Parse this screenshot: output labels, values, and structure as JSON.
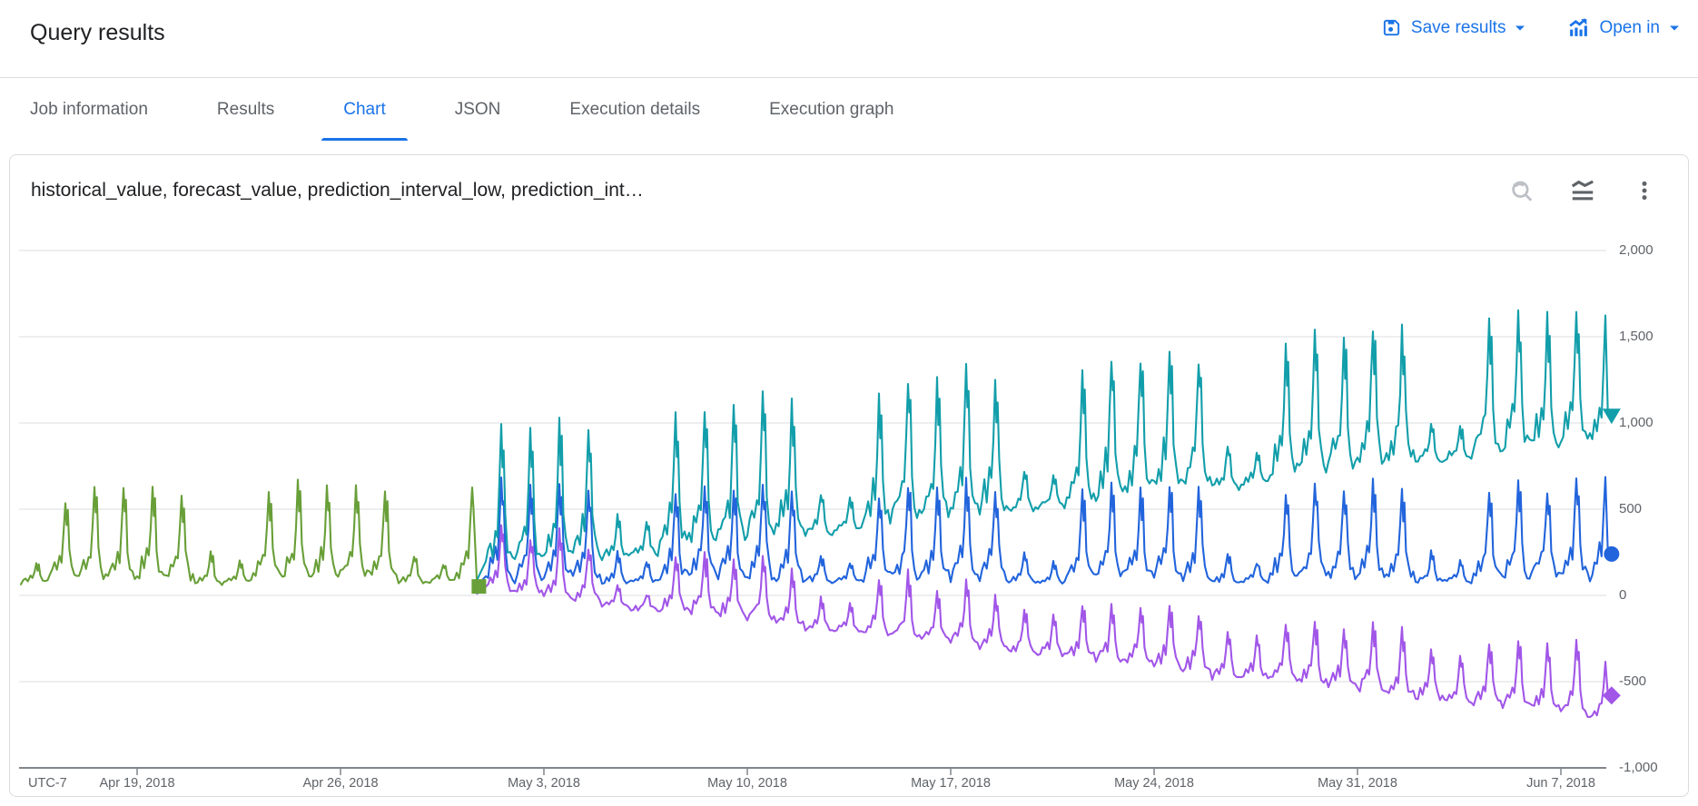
{
  "header": {
    "title": "Query results",
    "save_results_label": "Save results",
    "open_in_label": "Open in"
  },
  "tabs": [
    {
      "label": "Job information",
      "active": false
    },
    {
      "label": "Results",
      "active": false
    },
    {
      "label": "Chart",
      "active": true
    },
    {
      "label": "JSON",
      "active": false
    },
    {
      "label": "Execution details",
      "active": false
    },
    {
      "label": "Execution graph",
      "active": false
    }
  ],
  "chart_card": {
    "title": "historical_value, forecast_value, prediction_interval_low, prediction_int…",
    "icons": [
      "zoom-reset",
      "chart-settings",
      "more-options"
    ]
  },
  "colors": {
    "accent_blue": "#1a73e8",
    "tab_inactive": "#5f6368",
    "card_border": "#dadce0",
    "gridline": "#e2e4e7",
    "axis_line": "#80868b",
    "axis_text": "#5f6368",
    "historical_green": "#689f38",
    "forecast_blue": "#2264dc",
    "interval_high_teal": "#129eaa",
    "interval_low_purple": "#a156e8"
  },
  "chart_data": {
    "type": "line",
    "title": "historical_value, forecast_value, prediction_interval_low, prediction_interval_high",
    "x_axis": {
      "timezone_label": "UTC-7",
      "start_date": "Apr 15, 2018",
      "unit": "day",
      "tick_labels": [
        "Apr 19, 2018",
        "Apr 26, 2018",
        "May 3, 2018",
        "May 10, 2018",
        "May 17, 2018",
        "May 24, 2018",
        "May 31, 2018",
        "Jun 7, 2018"
      ],
      "tick_days": [
        4,
        11,
        18,
        25,
        32,
        39,
        46,
        53
      ]
    },
    "y_axis": {
      "min": -1000,
      "max": 2000,
      "grid": true,
      "position": "right",
      "tick_values": [
        2000,
        1500,
        1000,
        500,
        0,
        -500,
        -1000
      ],
      "tick_labels": [
        "2,000",
        "1,500",
        "1,000",
        "500",
        "0",
        "-500",
        "-1,000"
      ]
    },
    "intraday_profile": [
      [
        0,
        0.06
      ],
      [
        0.08,
        0.1
      ],
      [
        0.16,
        0.22
      ],
      [
        0.24,
        0.15
      ],
      [
        0.33,
        0.33
      ],
      [
        0.4,
        0.26
      ],
      [
        0.47,
        0.6
      ],
      [
        0.53,
        1.0
      ],
      [
        0.575,
        0.72
      ],
      [
        0.615,
        0.86
      ],
      [
        0.67,
        0.36
      ],
      [
        0.75,
        0.16
      ],
      [
        0.84,
        0.09
      ],
      [
        0.92,
        0.07
      ]
    ],
    "series": [
      {
        "name": "historical_value",
        "color": "#689f38",
        "marker": "square",
        "start_day": 0,
        "cut_last_day": 0.6,
        "end": [
          15.7,
          52
        ],
        "days_trough_peak": [
          [
            72,
            185
          ],
          [
            78,
            565
          ],
          [
            70,
            640
          ],
          [
            82,
            605
          ],
          [
            74,
            650
          ],
          [
            69,
            585
          ],
          [
            64,
            240
          ],
          [
            71,
            195
          ],
          [
            80,
            590
          ],
          [
            74,
            655
          ],
          [
            69,
            615
          ],
          [
            81,
            660
          ],
          [
            76,
            600
          ],
          [
            65,
            230
          ],
          [
            70,
            188
          ],
          [
            76,
            635
          ]
        ]
      },
      {
        "name": "prediction_interval_low",
        "color": "#a156e8",
        "marker": "diamond",
        "start_day": 16,
        "lead_in": [
          15.7,
          10
        ],
        "cut_last_day": 0.56,
        "end": [
          54.62,
          -580
        ],
        "days_trough_peak": [
          [
            15,
            388
          ],
          [
            -10,
            323
          ],
          [
            -19,
            368
          ],
          [
            -46,
            292
          ],
          [
            -75,
            57
          ],
          [
            -89,
            11
          ],
          [
            -100,
            232
          ],
          [
            -126,
            240
          ],
          [
            -137,
            205
          ],
          [
            -162,
            231
          ],
          [
            -185,
            140
          ],
          [
            -211,
            -14
          ],
          [
            -224,
            -41
          ],
          [
            -236,
            95
          ],
          [
            -261,
            132
          ],
          [
            -273,
            19
          ],
          [
            -297,
            81
          ],
          [
            -321,
            -4
          ],
          [
            -346,
            -88
          ],
          [
            -361,
            -108
          ],
          [
            -371,
            -65
          ],
          [
            -397,
            -56
          ],
          [
            -408,
            -81
          ],
          [
            -433,
            -67
          ],
          [
            -456,
            -102
          ],
          [
            -482,
            -213
          ],
          [
            -496,
            -240
          ],
          [
            -507,
            -168
          ],
          [
            -532,
            -155
          ],
          [
            -544,
            -184
          ],
          [
            -568,
            -167
          ],
          [
            -592,
            -202
          ],
          [
            -617,
            -326
          ],
          [
            -632,
            -357
          ],
          [
            -642,
            -271
          ],
          [
            -668,
            -255
          ],
          [
            -679,
            -287
          ],
          [
            -704,
            -267
          ],
          [
            -727,
            -385
          ]
        ]
      },
      {
        "name": "forecast_value",
        "color": "#2264dc",
        "marker": "circle",
        "start_day": 16,
        "lead_in": [
          15.7,
          55
        ],
        "cut_last_day": 0.56,
        "end": [
          54.62,
          240
        ],
        "days_trough_peak": [
          [
            75,
            650
          ],
          [
            70,
            615
          ],
          [
            80,
            660
          ],
          [
            73,
            600
          ],
          [
            63,
            245
          ],
          [
            69,
            195
          ],
          [
            77,
            585
          ],
          [
            71,
            648
          ],
          [
            79,
            612
          ],
          [
            74,
            658
          ],
          [
            70,
            598
          ],
          [
            64,
            238
          ],
          [
            70,
            192
          ],
          [
            78,
            588
          ],
          [
            72,
            652
          ],
          [
            80,
            610
          ],
          [
            75,
            662
          ],
          [
            71,
            602
          ],
          [
            65,
            242
          ],
          [
            70,
            190
          ],
          [
            79,
            592
          ],
          [
            73,
            655
          ],
          [
            81,
            615
          ],
          [
            76,
            665
          ],
          [
            72,
            605
          ],
          [
            66,
            240
          ],
          [
            71,
            196
          ],
          [
            80,
            595
          ],
          [
            74,
            660
          ],
          [
            82,
            618
          ],
          [
            77,
            668
          ],
          [
            73,
            608
          ],
          [
            67,
            245
          ],
          [
            72,
            198
          ],
          [
            81,
            598
          ],
          [
            75,
            662
          ],
          [
            83,
            622
          ],
          [
            78,
            670
          ],
          [
            74,
            700
          ]
        ]
      },
      {
        "name": "prediction_interval_high",
        "color": "#129eaa",
        "marker": "triangle-down",
        "start_day": 16,
        "lead_in": [
          15.7,
          90
        ],
        "cut_last_day": 0.56,
        "end": [
          54.62,
          1041
        ],
        "days_trough_peak": [
          [
            135,
            970
          ],
          [
            150,
            955
          ],
          [
            179,
            1019
          ],
          [
            192,
            979
          ],
          [
            201,
            463
          ],
          [
            227,
            433
          ],
          [
            254,
            1022
          ],
          [
            268,
            1105
          ],
          [
            295,
            1088
          ],
          [
            310,
            1154
          ],
          [
            325,
            1113
          ],
          [
            339,
            593
          ],
          [
            364,
            566
          ],
          [
            392,
            1162
          ],
          [
            405,
            1245
          ],
          [
            433,
            1223
          ],
          [
            447,
            1294
          ],
          [
            463,
            1254
          ],
          [
            476,
            733
          ],
          [
            501,
            701
          ],
          [
            529,
            1302
          ],
          [
            543,
            1385
          ],
          [
            570,
            1364
          ],
          [
            585,
            1434
          ],
          [
            600,
            1393
          ],
          [
            614,
            868
          ],
          [
            638,
            843
          ],
          [
            667,
            1442
          ],
          [
            680,
            1526
          ],
          [
            708,
            1504
          ],
          [
            722,
            1573
          ],
          [
            738,
            1533
          ],
          [
            751,
            1009
          ],
          [
            776,
            982
          ],
          [
            804,
            1581
          ],
          [
            818,
            1610
          ],
          [
            845,
            1600
          ],
          [
            860,
            1615
          ],
          [
            875,
            1590
          ]
        ]
      }
    ]
  }
}
